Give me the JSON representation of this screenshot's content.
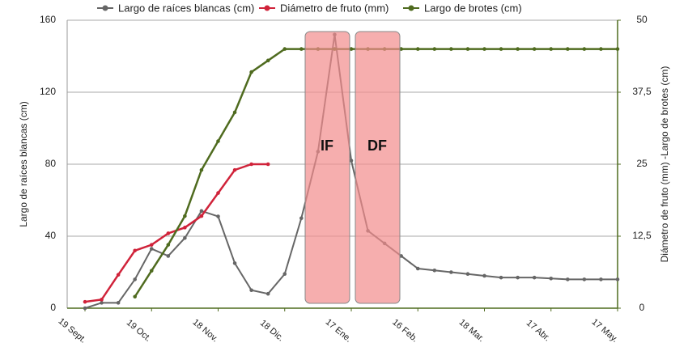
{
  "chart_data": {
    "type": "line",
    "categories": [
      "19 Sept.",
      null,
      null,
      null,
      "19 Oct.",
      null,
      null,
      null,
      "18 Nov.",
      null,
      null,
      null,
      "18 Dic.",
      null,
      null,
      null,
      "17 Ene.",
      null,
      null,
      null,
      "16 Feb.",
      null,
      null,
      null,
      "18 Mar.",
      null,
      null,
      null,
      "17 Abr.",
      null,
      null,
      null,
      "17 May."
    ],
    "series": [
      {
        "name": "Largo de raíces blancas (cm)",
        "color": "#666666",
        "axis": "y",
        "values": [
          0,
          3,
          3,
          16,
          33,
          29,
          39,
          54,
          51,
          25,
          10,
          8,
          19,
          50,
          87,
          152,
          82,
          43,
          36,
          29,
          22,
          21,
          20,
          19,
          18,
          17,
          17,
          17,
          16.5,
          16,
          16,
          16,
          16
        ]
      },
      {
        "name": "Diámetro de fruto (mm)",
        "color": "#d0233a",
        "axis": "y2",
        "values": [
          1.1,
          1.5,
          5.8,
          10,
          11,
          13,
          14,
          16,
          20,
          24,
          25,
          25,
          null,
          null,
          null,
          null,
          null,
          null,
          null,
          null,
          null,
          null,
          null,
          null,
          null,
          null,
          null,
          null,
          null,
          null,
          null,
          null,
          null
        ]
      },
      {
        "name": "Largo de brotes (cm)",
        "color": "#4f6b1f",
        "axis": "y2",
        "values": [
          null,
          null,
          null,
          2,
          6.5,
          11,
          16,
          24,
          29,
          34,
          41,
          43,
          45,
          45,
          45,
          45,
          45,
          45,
          45,
          45,
          45,
          45,
          45,
          45,
          45,
          45,
          45,
          45,
          45,
          45,
          45,
          45,
          45
        ]
      }
    ],
    "ylabel": "Largo de raíces blancas (cm)",
    "y2label": "Diámetro de fruto (mm) -Largo de brotes (cm)",
    "ylim": [
      0,
      160
    ],
    "yticks": [
      0,
      40,
      80,
      120,
      160
    ],
    "y2lim": [
      0,
      50
    ],
    "y2ticks": [
      0,
      {
        "value": 12.5,
        "label": "12,5"
      },
      25,
      {
        "value": 37.5,
        "label": "37,5"
      },
      50
    ],
    "annotations": [
      "IF",
      "DF"
    ],
    "grid": true,
    "legend": "top"
  }
}
